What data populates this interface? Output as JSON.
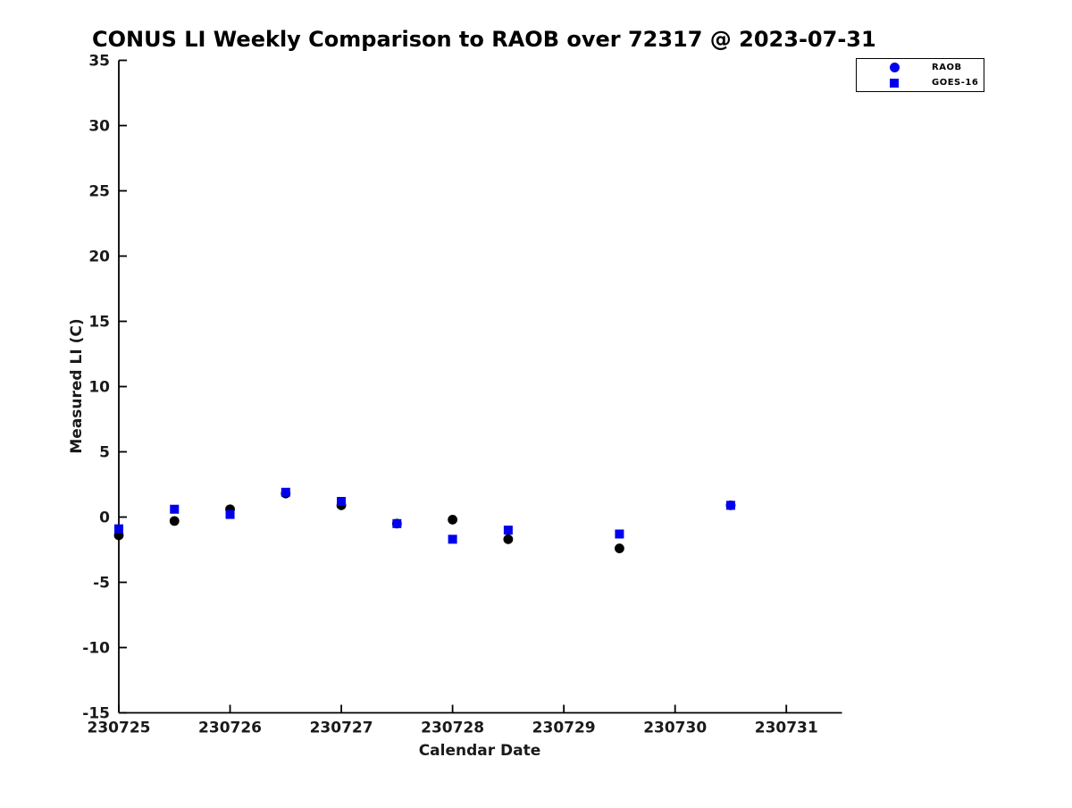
{
  "chart_data": {
    "type": "scatter",
    "title": "CONUS LI Weekly Comparison to RAOB over 72317 @ 2023-07-31",
    "xlabel": "Calendar Date",
    "ylabel": "Measured LI (C)",
    "xlim": [
      230725,
      230731.5
    ],
    "ylim": [
      -15,
      35
    ],
    "x_ticks": [
      230725,
      230726,
      230727,
      230728,
      230729,
      230730,
      230731
    ],
    "y_ticks": [
      35,
      30,
      25,
      20,
      15,
      10,
      5,
      0,
      -5,
      -10,
      -15
    ],
    "grid": false,
    "legend": {
      "position": "top-right",
      "entries": [
        {
          "label": "RAOB",
          "marker": "circle",
          "color": "#0000EE"
        },
        {
          "label": "GOES-16",
          "marker": "square",
          "color": "#0000EE"
        }
      ]
    },
    "series": [
      {
        "name": "RAOB",
        "marker": "circle",
        "color": "#000000",
        "x": [
          230725.0,
          230725.5,
          230726.0,
          230726.5,
          230727.0,
          230727.5,
          230728.0,
          230728.5,
          230729.5,
          230730.5
        ],
        "y": [
          -1.4,
          -0.3,
          0.6,
          1.8,
          0.9,
          -0.5,
          -0.2,
          -1.7,
          -2.4,
          0.9
        ]
      },
      {
        "name": "GOES-16",
        "marker": "square",
        "color": "#0000EE",
        "x": [
          230725.0,
          230725.5,
          230726.0,
          230726.5,
          230727.0,
          230727.5,
          230728.0,
          230728.5,
          230729.5,
          230730.5
        ],
        "y": [
          -0.9,
          0.6,
          0.2,
          1.9,
          1.2,
          -0.5,
          -1.7,
          -1.0,
          -1.3,
          0.9
        ]
      }
    ],
    "axis_color": "#000000",
    "tick_direction": "in"
  }
}
